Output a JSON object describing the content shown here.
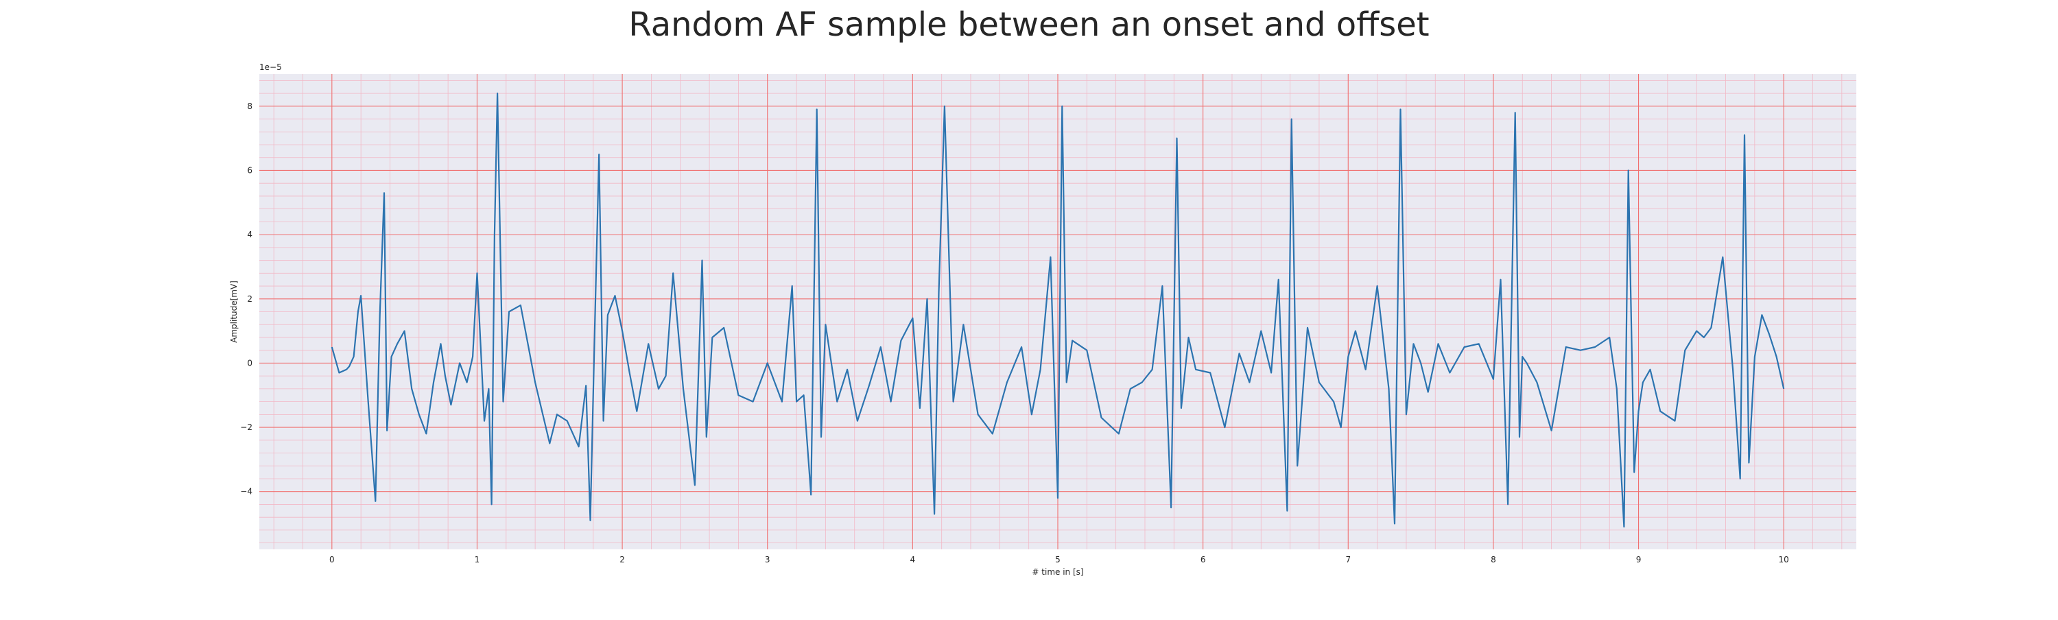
{
  "chart_data": {
    "type": "line",
    "title": "Random AF sample between an onset and offset",
    "xlabel": "# time in [s]",
    "ylabel": "Amplitude[mV]",
    "y_offset_label": "1e−5",
    "xlim": [
      -0.5,
      10.5
    ],
    "ylim": [
      -5.8,
      9.0
    ],
    "x_ticks": [
      0,
      1,
      2,
      3,
      4,
      5,
      6,
      7,
      8,
      9,
      10
    ],
    "y_ticks": [
      -4,
      -2,
      0,
      2,
      4,
      6,
      8
    ],
    "grid": "major red, minor pink",
    "colors": {
      "line": "#2c74b0",
      "plot_bg": "#eaeaf2",
      "major_grid": "#f07070",
      "minor_grid": "#f2b8c6"
    },
    "series": [
      {
        "x": [
          0,
          0.05,
          0.1,
          0.12,
          0.15,
          0.18,
          0.2,
          0.25,
          0.3,
          0.33,
          0.36,
          0.38,
          0.41,
          0.45,
          0.5,
          0.55,
          0.6,
          0.65,
          0.7,
          0.75,
          0.78,
          0.82,
          0.88,
          0.93,
          0.97,
          1.0,
          1.05,
          1.08,
          1.1,
          1.12,
          1.14,
          1.18,
          1.22,
          1.3,
          1.4,
          1.5,
          1.55,
          1.62,
          1.7,
          1.75,
          1.78,
          1.81,
          1.84,
          1.87,
          1.9,
          1.95,
          2.0,
          2.05,
          2.1,
          2.18,
          2.25,
          2.3,
          2.35,
          2.42,
          2.5,
          2.55,
          2.58,
          2.62,
          2.7,
          2.8,
          2.9,
          3.0,
          3.1,
          3.17,
          3.2,
          3.25,
          3.3,
          3.34,
          3.37,
          3.4,
          3.48,
          3.55,
          3.62,
          3.7,
          3.78,
          3.85,
          3.92,
          4.0,
          4.05,
          4.1,
          4.15,
          4.18,
          4.22,
          4.28,
          4.35,
          4.45,
          4.55,
          4.65,
          4.75,
          4.82,
          4.88,
          4.95,
          5.0,
          5.03,
          5.06,
          5.1,
          5.2,
          5.3,
          5.42,
          5.5,
          5.58,
          5.65,
          5.72,
          5.78,
          5.82,
          5.85,
          5.9,
          5.95,
          6.05,
          6.15,
          6.25,
          6.32,
          6.4,
          6.47,
          6.52,
          6.58,
          6.61,
          6.65,
          6.72,
          6.8,
          6.9,
          6.95,
          7.0,
          7.05,
          7.12,
          7.2,
          7.28,
          7.32,
          7.36,
          7.4,
          7.45,
          7.5,
          7.55,
          7.62,
          7.7,
          7.8,
          7.9,
          8.0,
          8.05,
          8.1,
          8.15,
          8.18,
          8.2,
          8.23,
          8.3,
          8.4,
          8.5,
          8.6,
          8.7,
          8.8,
          8.85,
          8.9,
          8.93,
          8.97,
          9.0,
          9.03,
          9.08,
          9.15,
          9.25,
          9.32,
          9.4,
          9.45,
          9.5,
          9.58,
          9.65,
          9.7,
          9.73,
          9.76,
          9.8,
          9.85,
          9.9,
          9.95,
          10.0
        ],
        "y": [
          0.5,
          -0.3,
          -0.2,
          -0.1,
          0.2,
          1.6,
          2.1,
          -1.2,
          -4.3,
          1.5,
          5.3,
          -2.1,
          0.2,
          0.6,
          1.0,
          -0.8,
          -1.6,
          -2.2,
          -0.6,
          0.6,
          -0.4,
          -1.3,
          0.0,
          -0.6,
          0.2,
          2.8,
          -1.8,
          -0.8,
          -4.4,
          4.0,
          8.4,
          -1.2,
          1.6,
          1.8,
          -0.6,
          -2.5,
          -1.6,
          -1.8,
          -2.6,
          -0.7,
          -4.9,
          1.0,
          6.5,
          -1.8,
          1.5,
          2.1,
          1.0,
          -0.3,
          -1.5,
          0.6,
          -0.8,
          -0.4,
          2.8,
          -0.8,
          -3.8,
          3.2,
          -2.3,
          0.8,
          1.1,
          -1.0,
          -1.2,
          0.0,
          -1.2,
          2.4,
          -1.2,
          -1.0,
          -4.1,
          7.9,
          -2.3,
          1.2,
          -1.2,
          -0.2,
          -1.8,
          -0.7,
          0.5,
          -1.2,
          0.7,
          1.4,
          -1.4,
          2.0,
          -4.7,
          2.2,
          8.0,
          -1.2,
          1.2,
          -1.6,
          -2.2,
          -0.6,
          0.5,
          -1.6,
          -0.2,
          3.3,
          -4.2,
          8.0,
          -0.6,
          0.7,
          0.4,
          -1.7,
          -2.2,
          -0.8,
          -0.6,
          -0.2,
          2.4,
          -4.5,
          7.0,
          -1.4,
          0.8,
          -0.2,
          -0.3,
          -2.0,
          0.3,
          -0.6,
          1.0,
          -0.3,
          2.6,
          -4.6,
          7.6,
          -3.2,
          1.1,
          -0.6,
          -1.2,
          -2.0,
          0.2,
          1.0,
          -0.2,
          2.4,
          -0.8,
          -5.0,
          7.9,
          -1.6,
          0.6,
          0.0,
          -0.9,
          0.6,
          -0.3,
          0.5,
          0.6,
          -0.5,
          2.6,
          -4.4,
          7.8,
          -2.3,
          0.2,
          0.0,
          -0.6,
          -2.1,
          0.5,
          0.4,
          0.5,
          0.8,
          -0.8,
          -5.1,
          6.0,
          -3.4,
          -1.5,
          -0.6,
          -0.2,
          -1.5,
          -1.8,
          0.4,
          1.0,
          0.8,
          1.1,
          3.3,
          -0.2,
          -3.6,
          7.1,
          -3.1,
          0.2,
          1.5,
          0.9,
          0.2,
          -0.8
        ]
      }
    ]
  }
}
